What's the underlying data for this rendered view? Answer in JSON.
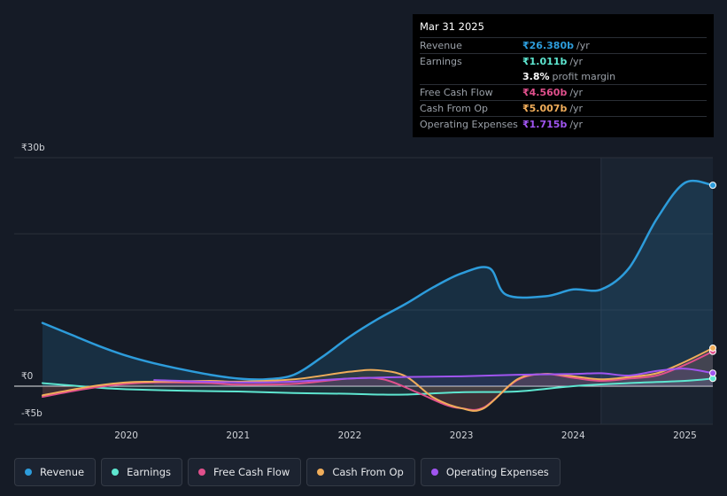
{
  "tooltip": {
    "date": "Mar 31 2025",
    "rows": [
      {
        "label": "Revenue",
        "value": "₹26.380b",
        "unit": "/yr",
        "color": "#2d9cdb"
      },
      {
        "label": "Earnings",
        "value": "₹1.011b",
        "unit": "/yr",
        "color": "#5ee6d0"
      },
      {
        "label": "",
        "value": "3.8%",
        "unit": "profit margin",
        "color": "#ffffff"
      },
      {
        "label": "Free Cash Flow",
        "value": "₹4.560b",
        "unit": "/yr",
        "color": "#e0508c"
      },
      {
        "label": "Cash From Op",
        "value": "₹5.007b",
        "unit": "/yr",
        "color": "#f0ad5a"
      },
      {
        "label": "Operating Expenses",
        "value": "₹1.715b",
        "unit": "/yr",
        "color": "#a055f0"
      }
    ]
  },
  "legend": [
    {
      "label": "Revenue",
      "color": "#2d9cdb"
    },
    {
      "label": "Earnings",
      "color": "#5ee6d0"
    },
    {
      "label": "Free Cash Flow",
      "color": "#e0508c"
    },
    {
      "label": "Cash From Op",
      "color": "#f0ad5a"
    },
    {
      "label": "Operating Expenses",
      "color": "#a055f0"
    }
  ],
  "chart_data": {
    "type": "line",
    "title": "",
    "y_tick_labels": [
      {
        "value": 30,
        "label": "₹30b"
      },
      {
        "value": 0,
        "label": "₹0"
      },
      {
        "value": -5,
        "label": "-₹5b"
      }
    ],
    "ylim": [
      -5,
      30
    ],
    "xlim": [
      2019.25,
      2025.25
    ],
    "x_ticks": [
      2020,
      2021,
      2022,
      2023,
      2024,
      2025
    ],
    "forecast_start": 2024.25,
    "series": [
      {
        "name": "Revenue",
        "color": "#2d9cdb",
        "points": [
          [
            2019.25,
            8.3
          ],
          [
            2019.5,
            6.8
          ],
          [
            2019.75,
            5.3
          ],
          [
            2020.0,
            4.0
          ],
          [
            2020.25,
            3.0
          ],
          [
            2020.5,
            2.2
          ],
          [
            2020.75,
            1.5
          ],
          [
            2021.0,
            1.0
          ],
          [
            2021.25,
            0.9
          ],
          [
            2021.5,
            1.5
          ],
          [
            2021.75,
            3.8
          ],
          [
            2022.0,
            6.5
          ],
          [
            2022.25,
            8.8
          ],
          [
            2022.5,
            10.8
          ],
          [
            2022.75,
            13.0
          ],
          [
            2023.0,
            14.8
          ],
          [
            2023.25,
            15.5
          ],
          [
            2023.4,
            12.0
          ],
          [
            2023.75,
            11.8
          ],
          [
            2024.0,
            12.7
          ],
          [
            2024.25,
            12.7
          ],
          [
            2024.5,
            15.5
          ],
          [
            2024.75,
            22.0
          ],
          [
            2025.0,
            26.7
          ],
          [
            2025.25,
            26.38
          ]
        ]
      },
      {
        "name": "Earnings",
        "color": "#5ee6d0",
        "points": [
          [
            2019.25,
            0.4
          ],
          [
            2019.5,
            0.1
          ],
          [
            2019.75,
            -0.2
          ],
          [
            2020.0,
            -0.4
          ],
          [
            2020.5,
            -0.6
          ],
          [
            2021.0,
            -0.7
          ],
          [
            2021.5,
            -0.9
          ],
          [
            2022.0,
            -1.0
          ],
          [
            2022.25,
            -1.1
          ],
          [
            2022.5,
            -1.1
          ],
          [
            2023.0,
            -0.8
          ],
          [
            2023.5,
            -0.7
          ],
          [
            2024.0,
            0.0
          ],
          [
            2024.5,
            0.4
          ],
          [
            2025.0,
            0.7
          ],
          [
            2025.25,
            1.011
          ]
        ]
      },
      {
        "name": "Free Cash Flow",
        "color": "#e0508c",
        "points": [
          [
            2019.25,
            -1.4
          ],
          [
            2019.5,
            -0.7
          ],
          [
            2019.75,
            -0.1
          ],
          [
            2020.0,
            0.3
          ],
          [
            2020.25,
            0.5
          ],
          [
            2020.75,
            0.4
          ],
          [
            2021.0,
            0.2
          ],
          [
            2021.5,
            0.3
          ],
          [
            2022.0,
            1.0
          ],
          [
            2022.3,
            0.9
          ],
          [
            2022.6,
            -0.8
          ],
          [
            2022.85,
            -2.4
          ],
          [
            2023.0,
            -2.9
          ],
          [
            2023.2,
            -2.8
          ],
          [
            2023.5,
            0.8
          ],
          [
            2023.75,
            1.6
          ],
          [
            2024.0,
            1.1
          ],
          [
            2024.25,
            0.7
          ],
          [
            2024.5,
            1.0
          ],
          [
            2024.75,
            1.4
          ],
          [
            2025.0,
            2.8
          ],
          [
            2025.25,
            4.56
          ]
        ]
      },
      {
        "name": "Cash From Op",
        "color": "#f0ad5a",
        "points": [
          [
            2019.25,
            -1.2
          ],
          [
            2019.5,
            -0.5
          ],
          [
            2019.75,
            0.1
          ],
          [
            2020.0,
            0.5
          ],
          [
            2020.25,
            0.6
          ],
          [
            2020.75,
            0.7
          ],
          [
            2021.0,
            0.6
          ],
          [
            2021.5,
            0.9
          ],
          [
            2022.0,
            1.9
          ],
          [
            2022.25,
            2.1
          ],
          [
            2022.5,
            1.3
          ],
          [
            2022.75,
            -1.5
          ],
          [
            2023.0,
            -2.9
          ],
          [
            2023.2,
            -2.9
          ],
          [
            2023.5,
            0.9
          ],
          [
            2023.75,
            1.6
          ],
          [
            2024.0,
            1.3
          ],
          [
            2024.25,
            0.9
          ],
          [
            2024.5,
            1.2
          ],
          [
            2024.75,
            1.7
          ],
          [
            2025.0,
            3.2
          ],
          [
            2025.25,
            5.007
          ]
        ]
      },
      {
        "name": "Operating Expenses",
        "color": "#a055f0",
        "points": [
          [
            2020.25,
            0.8
          ],
          [
            2021.0,
            0.5
          ],
          [
            2021.5,
            0.6
          ],
          [
            2022.0,
            1.0
          ],
          [
            2022.5,
            1.2
          ],
          [
            2023.0,
            1.3
          ],
          [
            2023.5,
            1.5
          ],
          [
            2024.0,
            1.6
          ],
          [
            2024.25,
            1.7
          ],
          [
            2024.5,
            1.4
          ],
          [
            2024.75,
            2.0
          ],
          [
            2025.0,
            2.3
          ],
          [
            2025.25,
            1.715
          ]
        ]
      }
    ]
  }
}
